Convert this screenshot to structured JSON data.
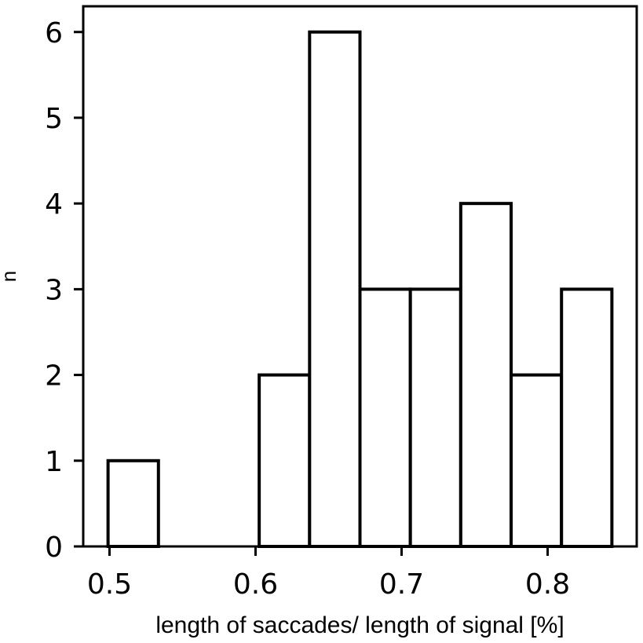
{
  "chart_data": {
    "type": "bar",
    "subtype": "histogram",
    "title": "",
    "xlabel": "length of saccades/ length of signal [%]",
    "ylabel": "n",
    "bins": [
      {
        "start": 0.499,
        "end": 0.5335,
        "count": 1
      },
      {
        "start": 0.5335,
        "end": 0.568,
        "count": 0
      },
      {
        "start": 0.568,
        "end": 0.6025,
        "count": 0
      },
      {
        "start": 0.6025,
        "end": 0.637,
        "count": 2
      },
      {
        "start": 0.637,
        "end": 0.6715,
        "count": 6
      },
      {
        "start": 0.6715,
        "end": 0.706,
        "count": 3
      },
      {
        "start": 0.706,
        "end": 0.7405,
        "count": 3
      },
      {
        "start": 0.7405,
        "end": 0.775,
        "count": 4
      },
      {
        "start": 0.775,
        "end": 0.8095,
        "count": 2
      },
      {
        "start": 0.8095,
        "end": 0.844,
        "count": 3
      }
    ],
    "xlim": [
      0.482,
      0.861
    ],
    "ylim": [
      0,
      6.3
    ],
    "xticks": [
      {
        "value": 0.5,
        "label": "0.5"
      },
      {
        "value": 0.6,
        "label": "0.6"
      },
      {
        "value": 0.7,
        "label": "0.7"
      },
      {
        "value": 0.8,
        "label": "0.8"
      }
    ],
    "yticks": [
      {
        "value": 0,
        "label": "0"
      },
      {
        "value": 1,
        "label": "1"
      },
      {
        "value": 2,
        "label": "2"
      },
      {
        "value": 3,
        "label": "3"
      },
      {
        "value": 4,
        "label": "4"
      },
      {
        "value": 5,
        "label": "5"
      },
      {
        "value": 6,
        "label": "6"
      }
    ],
    "bar_fill": "#ffffff",
    "bar_edge": "#000000",
    "grid": false,
    "legend": "none"
  }
}
